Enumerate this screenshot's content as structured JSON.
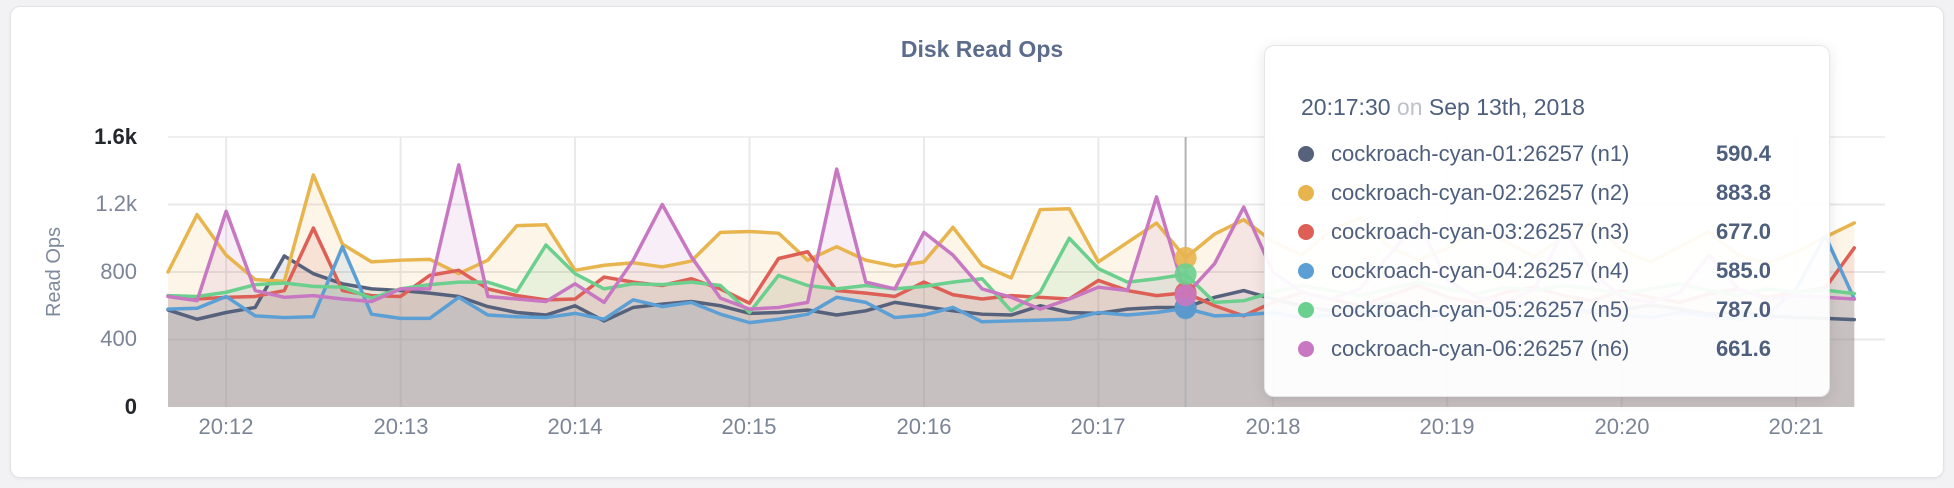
{
  "chart": {
    "title": "Disk Read Ops",
    "y_axis_label": "Read Ops",
    "y_ticks": [
      "1.6k",
      "1.2k",
      "800",
      "400",
      "0"
    ],
    "x_ticks": [
      "20:12",
      "20:13",
      "20:14",
      "20:15",
      "20:16",
      "20:17",
      "20:18",
      "20:19",
      "20:20",
      "20:21"
    ]
  },
  "tooltip": {
    "time": "20:17:30",
    "conjunction": "on",
    "date": "Sep 13th, 2018",
    "rows": [
      {
        "label": "cockroach-cyan-01:26257 (n1)",
        "value": "590.4",
        "color": "#56617c"
      },
      {
        "label": "cockroach-cyan-02:26257 (n2)",
        "value": "883.8",
        "color": "#e8b44e"
      },
      {
        "label": "cockroach-cyan-03:26257 (n3)",
        "value": "677.0",
        "color": "#dd5f55"
      },
      {
        "label": "cockroach-cyan-04:26257 (n4)",
        "value": "585.0",
        "color": "#5b9fd5"
      },
      {
        "label": "cockroach-cyan-05:26257 (n5)",
        "value": "787.0",
        "color": "#6bcf8e"
      },
      {
        "label": "cockroach-cyan-06:26257 (n6)",
        "value": "661.6",
        "color": "#c878c2"
      }
    ]
  },
  "chart_data": {
    "type": "line",
    "title": "Disk Read Ops",
    "xlabel": "",
    "ylabel": "Read Ops",
    "ylim": [
      0,
      1600
    ],
    "grid": true,
    "legend_position": "tooltip",
    "y_tick_values": [
      1600,
      1200,
      800,
      400,
      0
    ],
    "y_tick_labels": [
      "1.6k",
      "1.2k",
      "800",
      "400",
      "0"
    ],
    "x_start": "20:11:40",
    "x_end": "20:21:20",
    "x_step_seconds": 10,
    "x_tick_labels": [
      "20:12",
      "20:13",
      "20:14",
      "20:15",
      "20:16",
      "20:17",
      "20:18",
      "20:19",
      "20:20",
      "20:21"
    ],
    "x_tick_indices": [
      2,
      8,
      14,
      20,
      26,
      32,
      38,
      44,
      50,
      56
    ],
    "hover": {
      "index": 35,
      "time": "20:17:30",
      "date": "Sep 13th, 2018"
    },
    "fill_opacity": 0.13,
    "series": [
      {
        "name": "cockroach-cyan-01:26257 (n1)",
        "node": "n1",
        "color": "#56617c",
        "hover_value": 590.4,
        "values": [
          575,
          520,
          560,
          590,
          895,
          790,
          730,
          700,
          690,
          675,
          655,
          595,
          560,
          545,
          600,
          510,
          590,
          610,
          625,
          600,
          555,
          560,
          575,
          545,
          570,
          620,
          595,
          570,
          550,
          545,
          600,
          560,
          555,
          580,
          590,
          590.4,
          650,
          690,
          640,
          600,
          570,
          590,
          615,
          580,
          555,
          570,
          600,
          625,
          590,
          560,
          575,
          605,
          580,
          550,
          565,
          540,
          530,
          525,
          518
        ]
      },
      {
        "name": "cockroach-cyan-02:26257 (n2)",
        "node": "n2",
        "color": "#e8b44e",
        "hover_value": 883.8,
        "values": [
          800,
          1140,
          900,
          755,
          745,
          1375,
          965,
          860,
          870,
          875,
          790,
          870,
          1075,
          1080,
          810,
          840,
          855,
          830,
          865,
          1035,
          1040,
          1030,
          870,
          950,
          870,
          835,
          860,
          1065,
          840,
          765,
          1170,
          1175,
          860,
          975,
          1090,
          883.8,
          1025,
          1110,
          980,
          900,
          1050,
          1120,
          950,
          870,
          940,
          1060,
          980,
          890,
          1010,
          1090,
          930,
          860,
          950,
          1040,
          900,
          850,
          920,
          1007,
          1091
        ]
      },
      {
        "name": "cockroach-cyan-03:26257 (n3)",
        "node": "n3",
        "color": "#dd5f55",
        "hover_value": 677.0,
        "values": [
          660,
          640,
          650,
          655,
          690,
          1060,
          690,
          660,
          655,
          780,
          810,
          700,
          660,
          635,
          640,
          770,
          740,
          720,
          760,
          700,
          615,
          880,
          920,
          690,
          675,
          655,
          740,
          665,
          640,
          660,
          650,
          640,
          750,
          690,
          660,
          677.0,
          600,
          540,
          620,
          680,
          640,
          600,
          660,
          720,
          650,
          620,
          680,
          710,
          660,
          630,
          690,
          650,
          620,
          670,
          700,
          650,
          680,
          705,
          943
        ]
      },
      {
        "name": "cockroach-cyan-04:26257 (n4)",
        "node": "n4",
        "color": "#5b9fd5",
        "hover_value": 585.0,
        "values": [
          580,
          585,
          655,
          540,
          530,
          535,
          950,
          550,
          525,
          525,
          650,
          545,
          535,
          530,
          555,
          520,
          635,
          595,
          620,
          550,
          500,
          520,
          550,
          650,
          620,
          530,
          545,
          590,
          505,
          510,
          515,
          520,
          560,
          545,
          560,
          585.0,
          540,
          545,
          560,
          530,
          545,
          570,
          540,
          520,
          555,
          580,
          545,
          525,
          550,
          575,
          545,
          530,
          560,
          540,
          520,
          545,
          700,
          1015,
          640
        ]
      },
      {
        "name": "cockroach-cyan-05:26257 (n5)",
        "node": "n5",
        "color": "#6bcf8e",
        "hover_value": 787.0,
        "values": [
          660,
          655,
          680,
          725,
          735,
          715,
          710,
          645,
          700,
          725,
          740,
          740,
          685,
          960,
          790,
          700,
          730,
          725,
          740,
          720,
          560,
          780,
          720,
          700,
          720,
          700,
          715,
          740,
          760,
          570,
          680,
          1000,
          820,
          740,
          760,
          787.0,
          620,
          630,
          680,
          720,
          690,
          660,
          700,
          740,
          700,
          670,
          710,
          690,
          720,
          700,
          670,
          700,
          730,
          690,
          660,
          700,
          680,
          693,
          672
        ]
      },
      {
        "name": "cockroach-cyan-06:26257 (n6)",
        "node": "n6",
        "color": "#c878c2",
        "hover_value": 661.6,
        "values": [
          655,
          630,
          1160,
          690,
          650,
          660,
          640,
          625,
          700,
          700,
          1435,
          655,
          640,
          625,
          730,
          620,
          870,
          1200,
          890,
          645,
          580,
          590,
          620,
          1410,
          740,
          700,
          1035,
          900,
          700,
          650,
          580,
          640,
          710,
          690,
          1245,
          661.6,
          850,
          1185,
          800,
          680,
          640,
          700,
          900,
          1100,
          750,
          650,
          620,
          700,
          1050,
          800,
          650,
          620,
          680,
          900,
          700,
          640,
          660,
          650,
          640
        ]
      }
    ]
  }
}
